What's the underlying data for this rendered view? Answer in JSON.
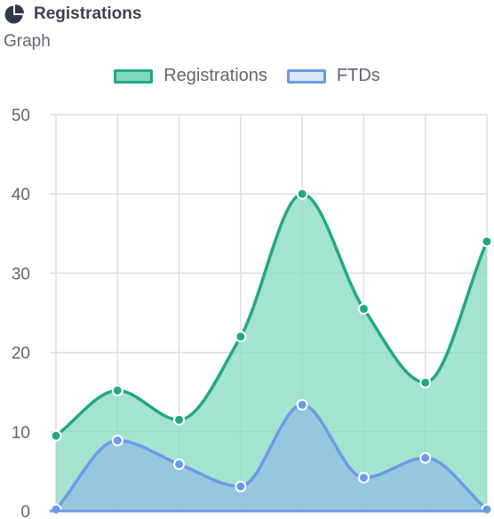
{
  "header": {
    "title": "Registrations",
    "icon": "pie-chart-icon",
    "subtitle": "Graph"
  },
  "chart_data": {
    "type": "area",
    "x": [
      0,
      1,
      2,
      3,
      4,
      5,
      6,
      7
    ],
    "ylim": [
      0,
      50
    ],
    "yticks": [
      "0",
      "10",
      "20",
      "30",
      "40",
      "50"
    ],
    "grid": true,
    "legend_position": "top-center",
    "series": [
      {
        "name": "Registrations",
        "values": [
          9.5,
          15.2,
          11.5,
          22,
          40,
          25.5,
          16.2,
          34
        ],
        "line_color": "#22a884",
        "fill_color": "#7fd8bd",
        "point_color": "#22a884"
      },
      {
        "name": "FTDs",
        "values": [
          0.2,
          8.9,
          5.9,
          3.1,
          13.4,
          4.2,
          6.7,
          0.2
        ],
        "line_color": "#6b9be6",
        "fill_color": "#8fb6e6",
        "point_color": "#6b9be6"
      }
    ]
  }
}
